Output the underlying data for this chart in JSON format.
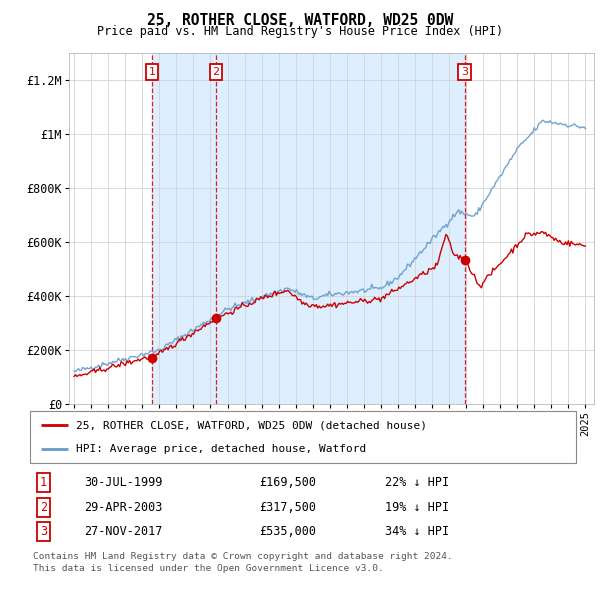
{
  "title": "25, ROTHER CLOSE, WATFORD, WD25 0DW",
  "subtitle": "Price paid vs. HM Land Registry's House Price Index (HPI)",
  "red_label": "25, ROTHER CLOSE, WATFORD, WD25 0DW (detached house)",
  "blue_label": "HPI: Average price, detached house, Watford",
  "footnote1": "Contains HM Land Registry data © Crown copyright and database right 2024.",
  "footnote2": "This data is licensed under the Open Government Licence v3.0.",
  "transactions": [
    {
      "num": 1,
      "date": "30-JUL-1999",
      "price": 169500,
      "pct": "22%",
      "dir": "↓",
      "year": 1999.58
    },
    {
      "num": 2,
      "date": "29-APR-2003",
      "price": 317500,
      "pct": "19%",
      "dir": "↓",
      "year": 2003.33
    },
    {
      "num": 3,
      "date": "27-NOV-2017",
      "price": 535000,
      "pct": "34%",
      "dir": "↓",
      "year": 2017.91
    }
  ],
  "red_color": "#cc0000",
  "blue_color": "#6699cc",
  "shade_color": "#ddeeff",
  "vline_color": "#cc0000",
  "box_color": "#cc0000",
  "ylim": [
    0,
    1300000
  ],
  "yticks": [
    0,
    200000,
    400000,
    600000,
    800000,
    1000000,
    1200000
  ],
  "ylabel_fmt": [
    "£0",
    "£200K",
    "£400K",
    "£600K",
    "£800K",
    "£1M",
    "£1.2M"
  ],
  "xmin": 1994.7,
  "xmax": 2025.5
}
